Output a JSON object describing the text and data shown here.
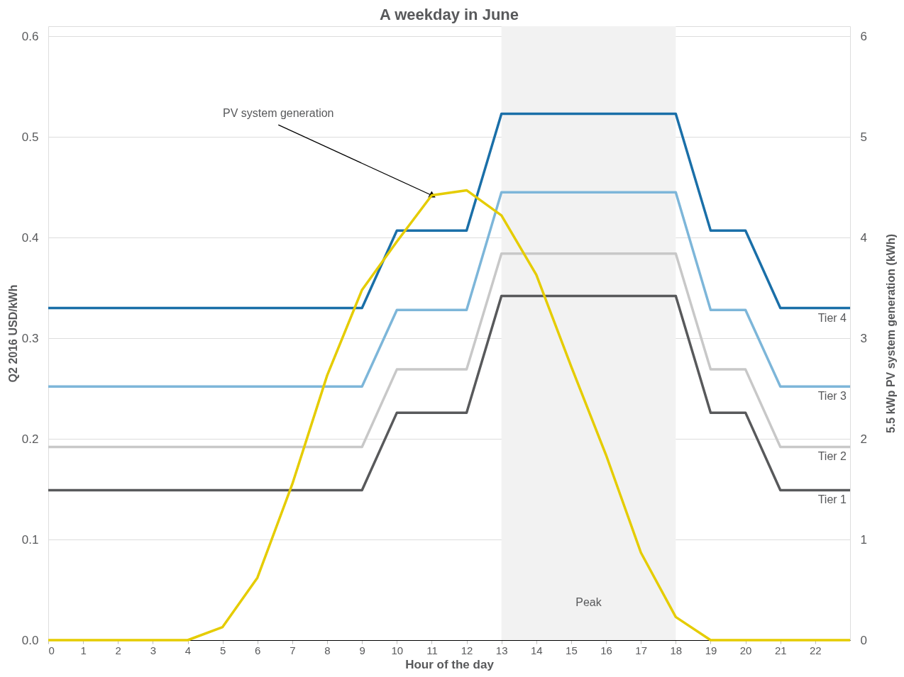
{
  "chart_data": {
    "type": "line",
    "title": "A weekday in June",
    "xlabel": "Hour of the day",
    "ylabel": "Q2 2016 USD/kWh",
    "y2label": "5.5 kWp PV system generation (kWh)",
    "xlim": [
      0,
      23
    ],
    "xticks": [
      0,
      1,
      2,
      3,
      4,
      5,
      6,
      7,
      8,
      9,
      10,
      11,
      12,
      13,
      14,
      15,
      16,
      17,
      18,
      19,
      20,
      21,
      22
    ],
    "ylim": [
      0,
      0.61
    ],
    "yticks": [
      {
        "value": 0,
        "label": "0.0"
      },
      0.1,
      0.2,
      0.3,
      0.4,
      0.5,
      0.6
    ],
    "y2lim": [
      0,
      6.1
    ],
    "y2ticks": [
      0,
      1,
      2,
      3,
      4,
      5,
      6
    ],
    "grid": "y",
    "marker": "none",
    "line_style": "solid",
    "bands": [
      {
        "axis": "x",
        "from": 13,
        "to": 18,
        "label": "Peak",
        "color": "#f2f2f2"
      }
    ],
    "annotations": [
      {
        "text": "PV system generation",
        "x": 11,
        "y": 0.442
      }
    ],
    "series": [
      {
        "name": "Tier 4",
        "color": "#1a6fa8",
        "x": [
          0,
          9,
          10,
          12,
          13,
          18,
          19,
          20,
          21,
          23
        ],
        "values": [
          0.33,
          0.33,
          0.407,
          0.407,
          0.523,
          0.523,
          0.407,
          0.407,
          0.33,
          0.33
        ]
      },
      {
        "name": "Tier 3",
        "color": "#7db6d9",
        "x": [
          0,
          9,
          10,
          12,
          13,
          18,
          19,
          20,
          21,
          23
        ],
        "values": [
          0.252,
          0.252,
          0.328,
          0.328,
          0.445,
          0.445,
          0.328,
          0.328,
          0.252,
          0.252
        ]
      },
      {
        "name": "Tier 2",
        "color": "#c8c8c8",
        "x": [
          0,
          9,
          10,
          12,
          13,
          18,
          19,
          20,
          21,
          23
        ],
        "values": [
          0.192,
          0.192,
          0.269,
          0.269,
          0.384,
          0.384,
          0.269,
          0.269,
          0.192,
          0.192
        ]
      },
      {
        "name": "Tier 1",
        "color": "#58595b",
        "x": [
          0,
          9,
          10,
          12,
          13,
          18,
          19,
          20,
          21,
          23
        ],
        "values": [
          0.149,
          0.149,
          0.226,
          0.226,
          0.342,
          0.342,
          0.226,
          0.226,
          0.149,
          0.149
        ]
      },
      {
        "color": "#e5cc00",
        "axis": "y2",
        "x": [
          0,
          1,
          2,
          3,
          4,
          5,
          6,
          7,
          8,
          9,
          10,
          11,
          12,
          13,
          14,
          15,
          16,
          17,
          18,
          19,
          20,
          21,
          22,
          23
        ],
        "values": [
          0,
          0,
          0,
          0,
          0,
          0.13,
          0.62,
          1.55,
          2.63,
          3.48,
          3.96,
          4.42,
          4.47,
          4.22,
          3.63,
          2.72,
          1.84,
          0.87,
          0.23,
          0,
          0,
          0,
          0,
          0
        ]
      }
    ]
  }
}
